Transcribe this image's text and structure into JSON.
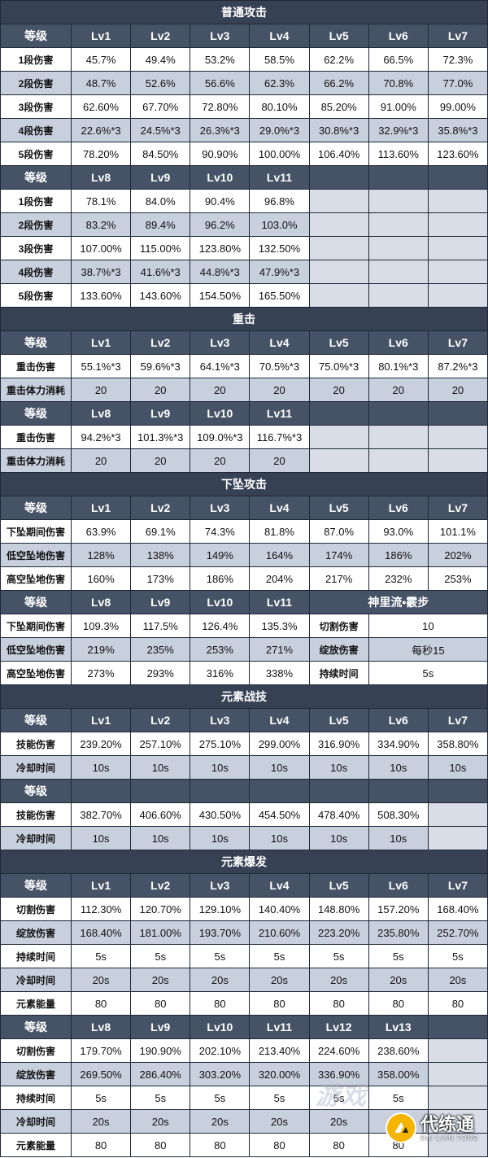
{
  "sections": [
    {
      "title": "普通攻击",
      "blocks": [
        {
          "header": [
            "等级",
            "Lv1",
            "Lv2",
            "Lv3",
            "Lv4",
            "Lv5",
            "Lv6",
            "Lv7"
          ],
          "rows": [
            [
              "1段伤害",
              "45.7%",
              "49.4%",
              "53.2%",
              "58.5%",
              "62.2%",
              "66.5%",
              "72.3%"
            ],
            [
              "2段伤害",
              "48.7%",
              "52.6%",
              "56.6%",
              "62.3%",
              "66.2%",
              "70.8%",
              "77.0%"
            ],
            [
              "3段伤害",
              "62.60%",
              "67.70%",
              "72.80%",
              "80.10%",
              "85.20%",
              "91.00%",
              "99.00%"
            ],
            [
              "4段伤害",
              "22.6%*3",
              "24.5%*3",
              "26.3%*3",
              "29.0%*3",
              "30.8%*3",
              "32.9%*3",
              "35.8%*3"
            ],
            [
              "5段伤害",
              "78.20%",
              "84.50%",
              "90.90%",
              "100.00%",
              "106.40%",
              "113.60%",
              "123.60%"
            ]
          ]
        },
        {
          "header": [
            "等级",
            "Lv8",
            "Lv9",
            "Lv10",
            "Lv11",
            "",
            "",
            ""
          ],
          "rows": [
            [
              "1段伤害",
              "78.1%",
              "84.0%",
              "90.4%",
              "96.8%",
              "",
              "",
              ""
            ],
            [
              "2段伤害",
              "83.2%",
              "89.4%",
              "96.2%",
              "103.0%",
              "",
              "",
              ""
            ],
            [
              "3段伤害",
              "107.00%",
              "115.00%",
              "123.80%",
              "132.50%",
              "",
              "",
              ""
            ],
            [
              "4段伤害",
              "38.7%*3",
              "41.6%*3",
              "44.8%*3",
              "47.9%*3",
              "",
              "",
              ""
            ],
            [
              "5段伤害",
              "133.60%",
              "143.60%",
              "154.50%",
              "165.50%",
              "",
              "",
              ""
            ]
          ]
        }
      ]
    },
    {
      "title": "重击",
      "blocks": [
        {
          "header": [
            "等级",
            "Lv1",
            "Lv2",
            "Lv3",
            "Lv4",
            "Lv5",
            "Lv6",
            "Lv7"
          ],
          "rows": [
            [
              "重击伤害",
              "55.1%*3",
              "59.6%*3",
              "64.1%*3",
              "70.5%*3",
              "75.0%*3",
              "80.1%*3",
              "87.2%*3"
            ],
            [
              "重击体力消耗",
              "20",
              "20",
              "20",
              "20",
              "20",
              "20",
              "20"
            ]
          ]
        },
        {
          "header": [
            "等级",
            "Lv8",
            "Lv9",
            "Lv10",
            "Lv11",
            "",
            "",
            ""
          ],
          "rows": [
            [
              "重击伤害",
              "94.2%*3",
              "101.3%*3",
              "109.0%*3",
              "116.7%*3",
              "",
              "",
              ""
            ],
            [
              "重击体力消耗",
              "20",
              "20",
              "20",
              "20",
              "",
              "",
              ""
            ]
          ]
        }
      ]
    },
    {
      "title": "下坠攻击",
      "blocks": [
        {
          "header": [
            "等级",
            "Lv1",
            "Lv2",
            "Lv3",
            "Lv4",
            "Lv5",
            "Lv6",
            "Lv7"
          ],
          "rows": [
            [
              "下坠期间伤害",
              "63.9%",
              "69.1%",
              "74.3%",
              "81.8%",
              "87.0%",
              "93.0%",
              "101.1%"
            ],
            [
              "低空坠地伤害",
              "128%",
              "138%",
              "149%",
              "164%",
              "174%",
              "186%",
              "202%"
            ],
            [
              "高空坠地伤害",
              "160%",
              "173%",
              "186%",
              "204%",
              "217%",
              "232%",
              "253%"
            ]
          ]
        }
      ],
      "special_block": {
        "header": [
          "等级",
          "Lv8",
          "Lv9",
          "Lv10",
          "Lv11"
        ],
        "header_side": "神里流•霰步",
        "rows": [
          [
            "下坠期间伤害",
            "109.3%",
            "117.5%",
            "126.4%",
            "135.3%"
          ],
          [
            "低空坠地伤害",
            "219%",
            "235%",
            "253%",
            "271%"
          ],
          [
            "高空坠地伤害",
            "273%",
            "293%",
            "316%",
            "338%"
          ]
        ],
        "side_rows": [
          [
            "切割伤害",
            "10"
          ],
          [
            "绽放伤害",
            "每秒15"
          ],
          [
            "持续时间",
            "5s"
          ]
        ]
      }
    },
    {
      "title": "元素战技",
      "blocks": [
        {
          "header": [
            "等级",
            "Lv1",
            "Lv2",
            "Lv3",
            "Lv4",
            "Lv5",
            "Lv6",
            "Lv7"
          ],
          "rows": [
            [
              "技能伤害",
              "239.20%",
              "257.10%",
              "275.10%",
              "299.00%",
              "316.90%",
              "334.90%",
              "358.80%"
            ],
            [
              "冷却时间",
              "10s",
              "10s",
              "10s",
              "10s",
              "10s",
              "10s",
              "10s"
            ]
          ]
        },
        {
          "header": [
            "等级",
            "",
            "",
            "",
            "",
            "",
            "",
            ""
          ],
          "rows": [
            [
              "技能伤害",
              "382.70%",
              "406.60%",
              "430.50%",
              "454.50%",
              "478.40%",
              "508.30%",
              ""
            ],
            [
              "冷却时间",
              "10s",
              "10s",
              "10s",
              "10s",
              "10s",
              "10s",
              ""
            ]
          ]
        }
      ]
    },
    {
      "title": "元素爆发",
      "blocks": [
        {
          "header": [
            "等级",
            "Lv1",
            "Lv2",
            "Lv3",
            "Lv4",
            "Lv5",
            "Lv6",
            "Lv7"
          ],
          "rows": [
            [
              "切割伤害",
              "112.30%",
              "120.70%",
              "129.10%",
              "140.40%",
              "148.80%",
              "157.20%",
              "168.40%"
            ],
            [
              "绽放伤害",
              "168.40%",
              "181.00%",
              "193.70%",
              "210.60%",
              "223.20%",
              "235.80%",
              "252.70%"
            ],
            [
              "持续时间",
              "5s",
              "5s",
              "5s",
              "5s",
              "5s",
              "5s",
              "5s"
            ],
            [
              "冷却时间",
              "20s",
              "20s",
              "20s",
              "20s",
              "20s",
              "20s",
              "20s"
            ],
            [
              "元素能量",
              "80",
              "80",
              "80",
              "80",
              "80",
              "80",
              "80"
            ]
          ]
        },
        {
          "header": [
            "等级",
            "Lv8",
            "Lv9",
            "Lv10",
            "Lv11",
            "Lv12",
            "Lv13",
            ""
          ],
          "rows": [
            [
              "切割伤害",
              "179.70%",
              "190.90%",
              "202.10%",
              "213.40%",
              "224.60%",
              "238.60%",
              ""
            ],
            [
              "绽放伤害",
              "269.50%",
              "286.40%",
              "303.20%",
              "320.00%",
              "336.90%",
              "358.00%",
              ""
            ],
            [
              "持续时间",
              "5s",
              "5s",
              "5s",
              "5s",
              "5s",
              "5s",
              ""
            ],
            [
              "冷却时间",
              "20s",
              "20s",
              "20s",
              "20s",
              "20s",
              "20s",
              ""
            ],
            [
              "元素能量",
              "80",
              "80",
              "80",
              "80",
              "80",
              "80",
              ""
            ]
          ]
        }
      ]
    }
  ],
  "watermark": {
    "faint_text": "游戏",
    "logo_cn": "代练通",
    "logo_en": "DAI LIAN TONG"
  },
  "colors": {
    "title_bg": "#364154",
    "header_bg": "#465266",
    "alt_row_bg": "#c8cfdd",
    "logo_accent": "#f4b400"
  }
}
